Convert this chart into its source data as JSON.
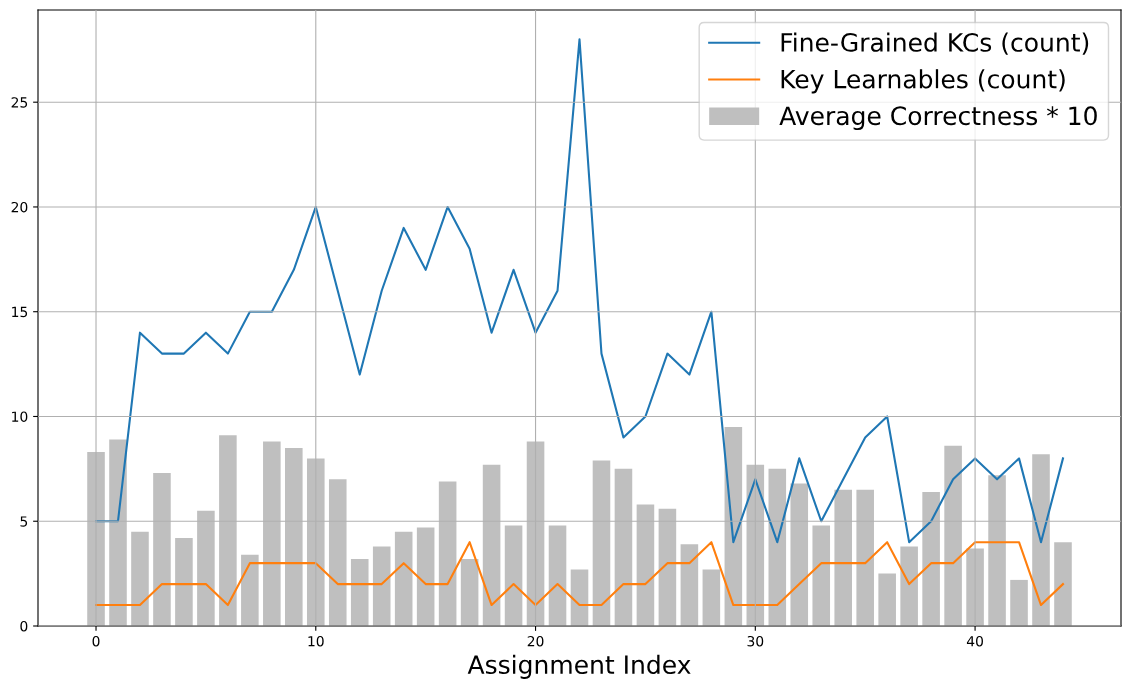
{
  "chart_data": {
    "type": "bar",
    "xlabel": "Assignment Index",
    "x": [
      0,
      1,
      2,
      3,
      4,
      5,
      6,
      7,
      8,
      9,
      10,
      11,
      12,
      13,
      14,
      15,
      16,
      17,
      18,
      19,
      20,
      21,
      22,
      23,
      24,
      25,
      26,
      27,
      28,
      29,
      30,
      31,
      32,
      33,
      34,
      35,
      36,
      37,
      38,
      39,
      40,
      41,
      42,
      43,
      44
    ],
    "series": [
      {
        "name": "Fine-Grained KCs (count)",
        "type": "line",
        "color": "#1f77b4",
        "values": [
          5,
          5,
          14,
          13,
          13,
          14,
          13,
          15,
          15,
          17,
          20,
          16,
          12,
          16,
          19,
          17,
          20,
          18,
          14,
          17,
          14,
          16,
          28,
          13,
          9,
          10,
          13,
          12,
          15,
          4,
          7,
          4,
          8,
          5,
          7,
          9,
          10,
          4,
          5,
          7,
          8,
          7,
          8,
          4,
          8
        ]
      },
      {
        "name": "Key Learnables (count)",
        "type": "line",
        "color": "#ff7f0e",
        "values": [
          1,
          1,
          1,
          2,
          2,
          2,
          1,
          3,
          3,
          3,
          3,
          2,
          2,
          2,
          3,
          2,
          2,
          4,
          1,
          2,
          1,
          2,
          1,
          1,
          2,
          2,
          3,
          3,
          4,
          1,
          1,
          1,
          2,
          3,
          3,
          3,
          4,
          2,
          3,
          3,
          4,
          4,
          4,
          1,
          2
        ]
      },
      {
        "name": "Average Correctness * 10",
        "color": "#bfbfbf",
        "values": [
          8.3,
          8.9,
          4.5,
          7.3,
          4.2,
          5.5,
          9.1,
          3.4,
          8.8,
          8.5,
          8.0,
          7.0,
          3.2,
          3.8,
          4.5,
          4.7,
          6.9,
          3.2,
          7.7,
          4.8,
          8.8,
          4.8,
          2.7,
          7.9,
          7.5,
          5.8,
          5.6,
          3.9,
          2.7,
          9.5,
          7.7,
          7.5,
          6.8,
          4.8,
          6.5,
          6.5,
          2.5,
          3.8,
          6.4,
          8.6,
          3.7,
          7.2,
          2.2,
          8.2,
          4.0
        ]
      }
    ],
    "xlim": [
      -2.64,
      46.64
    ],
    "ylim": [
      0,
      29.4
    ],
    "xticks": [
      0,
      10,
      20,
      30,
      40
    ],
    "yticks": [
      0,
      5,
      10,
      15,
      20,
      25
    ],
    "grid": true,
    "legend": "top right"
  }
}
